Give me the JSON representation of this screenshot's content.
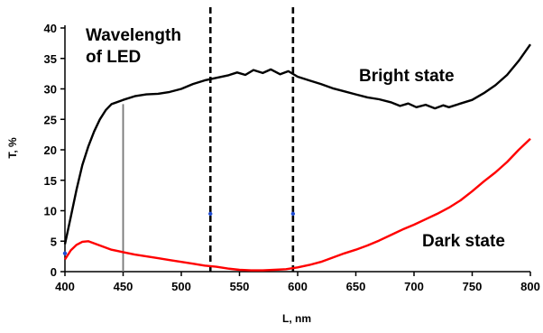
{
  "chart_data": {
    "type": "line",
    "xlabel": "L, nm",
    "ylabel": "T, %",
    "xlim": [
      400,
      800
    ],
    "ylim": [
      0,
      40
    ],
    "x_ticks": [
      400,
      450,
      500,
      550,
      600,
      650,
      700,
      750,
      800
    ],
    "y_ticks": [
      0,
      5,
      10,
      15,
      20,
      25,
      30,
      35,
      40
    ],
    "grid": false,
    "series": [
      {
        "name": "Bright state",
        "color": "#000000",
        "points": [
          [
            400,
            4.5
          ],
          [
            405,
            9
          ],
          [
            410,
            13.5
          ],
          [
            415,
            17.5
          ],
          [
            420,
            20.5
          ],
          [
            425,
            23
          ],
          [
            430,
            25
          ],
          [
            435,
            26.5
          ],
          [
            440,
            27.5
          ],
          [
            450,
            28.2
          ],
          [
            460,
            28.8
          ],
          [
            470,
            29.1
          ],
          [
            480,
            29.2
          ],
          [
            490,
            29.5
          ],
          [
            500,
            30
          ],
          [
            510,
            30.8
          ],
          [
            520,
            31.4
          ],
          [
            530,
            31.8
          ],
          [
            540,
            32.2
          ],
          [
            548,
            32.7
          ],
          [
            555,
            32.3
          ],
          [
            562,
            33.1
          ],
          [
            570,
            32.6
          ],
          [
            577,
            33.2
          ],
          [
            585,
            32.4
          ],
          [
            592,
            32.9
          ],
          [
            600,
            32.0
          ],
          [
            610,
            31.4
          ],
          [
            620,
            30.8
          ],
          [
            630,
            30.1
          ],
          [
            640,
            29.6
          ],
          [
            650,
            29.1
          ],
          [
            660,
            28.6
          ],
          [
            670,
            28.3
          ],
          [
            680,
            27.8
          ],
          [
            688,
            27.2
          ],
          [
            695,
            27.6
          ],
          [
            702,
            27.0
          ],
          [
            710,
            27.4
          ],
          [
            718,
            26.8
          ],
          [
            725,
            27.3
          ],
          [
            730,
            27.0
          ],
          [
            740,
            27.6
          ],
          [
            750,
            28.2
          ],
          [
            760,
            29.3
          ],
          [
            770,
            30.6
          ],
          [
            780,
            32.3
          ],
          [
            790,
            34.6
          ],
          [
            800,
            37.3
          ]
        ]
      },
      {
        "name": "Dark state",
        "color": "#ff0000",
        "points": [
          [
            400,
            2.0
          ],
          [
            405,
            3.5
          ],
          [
            410,
            4.4
          ],
          [
            415,
            4.9
          ],
          [
            420,
            5.0
          ],
          [
            430,
            4.3
          ],
          [
            440,
            3.6
          ],
          [
            450,
            3.2
          ],
          [
            460,
            2.8
          ],
          [
            470,
            2.5
          ],
          [
            480,
            2.2
          ],
          [
            490,
            1.9
          ],
          [
            500,
            1.6
          ],
          [
            510,
            1.3
          ],
          [
            520,
            1.0
          ],
          [
            530,
            0.8
          ],
          [
            540,
            0.5
          ],
          [
            550,
            0.3
          ],
          [
            560,
            0.2
          ],
          [
            570,
            0.2
          ],
          [
            580,
            0.3
          ],
          [
            590,
            0.4
          ],
          [
            600,
            0.7
          ],
          [
            610,
            1.1
          ],
          [
            620,
            1.6
          ],
          [
            630,
            2.3
          ],
          [
            640,
            3.0
          ],
          [
            650,
            3.6
          ],
          [
            660,
            4.3
          ],
          [
            670,
            5.1
          ],
          [
            680,
            6.0
          ],
          [
            690,
            6.9
          ],
          [
            700,
            7.7
          ],
          [
            710,
            8.6
          ],
          [
            720,
            9.5
          ],
          [
            730,
            10.5
          ],
          [
            740,
            11.7
          ],
          [
            750,
            13.2
          ],
          [
            760,
            14.8
          ],
          [
            770,
            16.3
          ],
          [
            780,
            18.0
          ],
          [
            790,
            20.0
          ],
          [
            800,
            21.8
          ]
        ]
      }
    ],
    "vertical_lines": [
      {
        "x": 450,
        "style": "solid",
        "color": "#777777"
      },
      {
        "x": 525,
        "style": "dashed",
        "color": "#000000"
      },
      {
        "x": 596,
        "style": "dashed",
        "color": "#000000"
      }
    ],
    "markers": [
      {
        "x": 525,
        "y": 9.5,
        "color": "#1e4bd2"
      },
      {
        "x": 596,
        "y": 9.5,
        "color": "#1e4bd2"
      },
      {
        "x": 400,
        "y": 3.0,
        "color": "#1e4bd2"
      }
    ],
    "annotations": {
      "wavelength_line1": "Wavelength",
      "wavelength_line2": "of LED",
      "bright": "Bright state",
      "dark": "Dark state"
    }
  }
}
